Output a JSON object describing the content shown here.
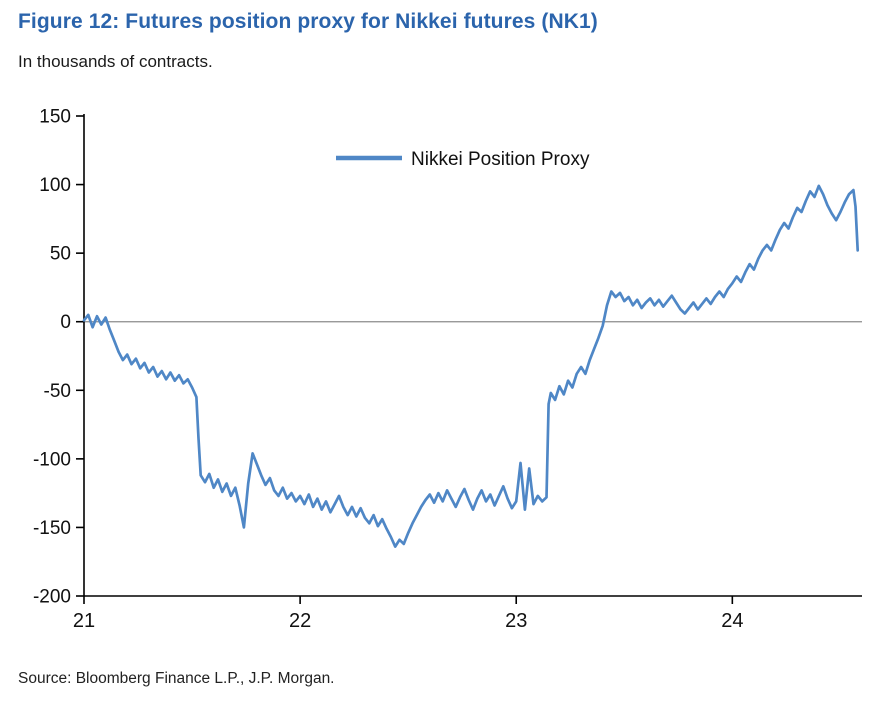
{
  "figure": {
    "title": "Figure 12: Futures position proxy for Nikkei futures (NK1)",
    "subtitle": "In thousands of contracts.",
    "source": "Source: Bloomberg Finance L.P., J.P. Morgan."
  },
  "colors": {
    "title_blue": "#2b64ac",
    "line_blue": "#4f87c6",
    "zero_line_gray": "#8c8c8c",
    "axis_black": "#000000",
    "text_black": "#111111"
  },
  "chart_data": {
    "type": "line",
    "title": "Figure 12: Futures position proxy for Nikkei futures (NK1)",
    "subtitle": "In thousands of contracts.",
    "xlabel": "",
    "ylabel": "",
    "xlim": [
      21,
      24.6
    ],
    "ylim": [
      -200,
      150
    ],
    "x_ticks": [
      "21",
      "22",
      "23",
      "24"
    ],
    "y_ticks": [
      150,
      100,
      50,
      0,
      -50,
      -100,
      -150,
      -200
    ],
    "grid": false,
    "zero_line": true,
    "legend": {
      "position": "top-center-inside",
      "entries": [
        "Nikkei Position Proxy"
      ]
    },
    "series": [
      {
        "name": "Nikkei Position Proxy",
        "color": "#4f87c6",
        "points": [
          [
            21.0,
            1
          ],
          [
            21.02,
            5
          ],
          [
            21.04,
            -4
          ],
          [
            21.06,
            4
          ],
          [
            21.08,
            -2
          ],
          [
            21.1,
            3
          ],
          [
            21.12,
            -6
          ],
          [
            21.14,
            -14
          ],
          [
            21.16,
            -22
          ],
          [
            21.18,
            -28
          ],
          [
            21.2,
            -24
          ],
          [
            21.22,
            -31
          ],
          [
            21.24,
            -27
          ],
          [
            21.26,
            -34
          ],
          [
            21.28,
            -30
          ],
          [
            21.3,
            -37
          ],
          [
            21.32,
            -33
          ],
          [
            21.34,
            -40
          ],
          [
            21.36,
            -36
          ],
          [
            21.38,
            -42
          ],
          [
            21.4,
            -37
          ],
          [
            21.42,
            -43
          ],
          [
            21.44,
            -39
          ],
          [
            21.46,
            -45
          ],
          [
            21.48,
            -42
          ],
          [
            21.5,
            -48
          ],
          [
            21.52,
            -55
          ],
          [
            21.53,
            -85
          ],
          [
            21.54,
            -112
          ],
          [
            21.56,
            -117
          ],
          [
            21.58,
            -111
          ],
          [
            21.6,
            -121
          ],
          [
            21.62,
            -115
          ],
          [
            21.64,
            -124
          ],
          [
            21.66,
            -118
          ],
          [
            21.68,
            -127
          ],
          [
            21.7,
            -121
          ],
          [
            21.72,
            -134
          ],
          [
            21.74,
            -150
          ],
          [
            21.76,
            -118
          ],
          [
            21.78,
            -96
          ],
          [
            21.8,
            -104
          ],
          [
            21.82,
            -112
          ],
          [
            21.84,
            -119
          ],
          [
            21.86,
            -114
          ],
          [
            21.88,
            -123
          ],
          [
            21.9,
            -127
          ],
          [
            21.92,
            -121
          ],
          [
            21.94,
            -129
          ],
          [
            21.96,
            -125
          ],
          [
            21.98,
            -131
          ],
          [
            22.0,
            -127
          ],
          [
            22.02,
            -133
          ],
          [
            22.04,
            -126
          ],
          [
            22.06,
            -135
          ],
          [
            22.08,
            -129
          ],
          [
            22.1,
            -137
          ],
          [
            22.12,
            -131
          ],
          [
            22.14,
            -139
          ],
          [
            22.16,
            -133
          ],
          [
            22.18,
            -127
          ],
          [
            22.2,
            -135
          ],
          [
            22.22,
            -141
          ],
          [
            22.24,
            -135
          ],
          [
            22.26,
            -142
          ],
          [
            22.28,
            -136
          ],
          [
            22.3,
            -143
          ],
          [
            22.32,
            -147
          ],
          [
            22.34,
            -141
          ],
          [
            22.36,
            -149
          ],
          [
            22.38,
            -144
          ],
          [
            22.4,
            -151
          ],
          [
            22.42,
            -157
          ],
          [
            22.44,
            -164
          ],
          [
            22.46,
            -159
          ],
          [
            22.48,
            -162
          ],
          [
            22.5,
            -154
          ],
          [
            22.52,
            -147
          ],
          [
            22.54,
            -141
          ],
          [
            22.56,
            -135
          ],
          [
            22.58,
            -130
          ],
          [
            22.6,
            -126
          ],
          [
            22.62,
            -132
          ],
          [
            22.64,
            -125
          ],
          [
            22.66,
            -131
          ],
          [
            22.68,
            -123
          ],
          [
            22.7,
            -129
          ],
          [
            22.72,
            -135
          ],
          [
            22.74,
            -128
          ],
          [
            22.76,
            -122
          ],
          [
            22.78,
            -130
          ],
          [
            22.8,
            -137
          ],
          [
            22.82,
            -129
          ],
          [
            22.84,
            -123
          ],
          [
            22.86,
            -131
          ],
          [
            22.88,
            -126
          ],
          [
            22.9,
            -134
          ],
          [
            22.92,
            -127
          ],
          [
            22.94,
            -120
          ],
          [
            22.96,
            -129
          ],
          [
            22.98,
            -136
          ],
          [
            23.0,
            -131
          ],
          [
            23.02,
            -103
          ],
          [
            23.04,
            -137
          ],
          [
            23.06,
            -107
          ],
          [
            23.08,
            -133
          ],
          [
            23.1,
            -127
          ],
          [
            23.12,
            -131
          ],
          [
            23.14,
            -128
          ],
          [
            23.15,
            -60
          ],
          [
            23.16,
            -52
          ],
          [
            23.18,
            -57
          ],
          [
            23.2,
            -47
          ],
          [
            23.22,
            -53
          ],
          [
            23.24,
            -43
          ],
          [
            23.26,
            -48
          ],
          [
            23.28,
            -38
          ],
          [
            23.3,
            -33
          ],
          [
            23.32,
            -38
          ],
          [
            23.34,
            -28
          ],
          [
            23.36,
            -20
          ],
          [
            23.38,
            -12
          ],
          [
            23.4,
            -3
          ],
          [
            23.42,
            12
          ],
          [
            23.44,
            22
          ],
          [
            23.46,
            18
          ],
          [
            23.48,
            21
          ],
          [
            23.5,
            15
          ],
          [
            23.52,
            18
          ],
          [
            23.54,
            12
          ],
          [
            23.56,
            16
          ],
          [
            23.58,
            10
          ],
          [
            23.6,
            14
          ],
          [
            23.62,
            17
          ],
          [
            23.64,
            12
          ],
          [
            23.66,
            16
          ],
          [
            23.68,
            11
          ],
          [
            23.7,
            15
          ],
          [
            23.72,
            19
          ],
          [
            23.74,
            14
          ],
          [
            23.76,
            9
          ],
          [
            23.78,
            6
          ],
          [
            23.8,
            10
          ],
          [
            23.82,
            14
          ],
          [
            23.84,
            9
          ],
          [
            23.86,
            13
          ],
          [
            23.88,
            17
          ],
          [
            23.9,
            13
          ],
          [
            23.92,
            18
          ],
          [
            23.94,
            22
          ],
          [
            23.96,
            18
          ],
          [
            23.98,
            24
          ],
          [
            24.0,
            28
          ],
          [
            24.02,
            33
          ],
          [
            24.04,
            29
          ],
          [
            24.06,
            36
          ],
          [
            24.08,
            42
          ],
          [
            24.1,
            38
          ],
          [
            24.12,
            46
          ],
          [
            24.14,
            52
          ],
          [
            24.16,
            56
          ],
          [
            24.18,
            52
          ],
          [
            24.2,
            60
          ],
          [
            24.22,
            67
          ],
          [
            24.24,
            72
          ],
          [
            24.26,
            68
          ],
          [
            24.28,
            76
          ],
          [
            24.3,
            83
          ],
          [
            24.32,
            80
          ],
          [
            24.34,
            88
          ],
          [
            24.36,
            95
          ],
          [
            24.38,
            91
          ],
          [
            24.4,
            99
          ],
          [
            24.42,
            93
          ],
          [
            24.44,
            85
          ],
          [
            24.46,
            79
          ],
          [
            24.48,
            74
          ],
          [
            24.5,
            80
          ],
          [
            24.52,
            87
          ],
          [
            24.54,
            93
          ],
          [
            24.56,
            96
          ],
          [
            24.57,
            84
          ],
          [
            24.58,
            52
          ]
        ]
      }
    ]
  }
}
